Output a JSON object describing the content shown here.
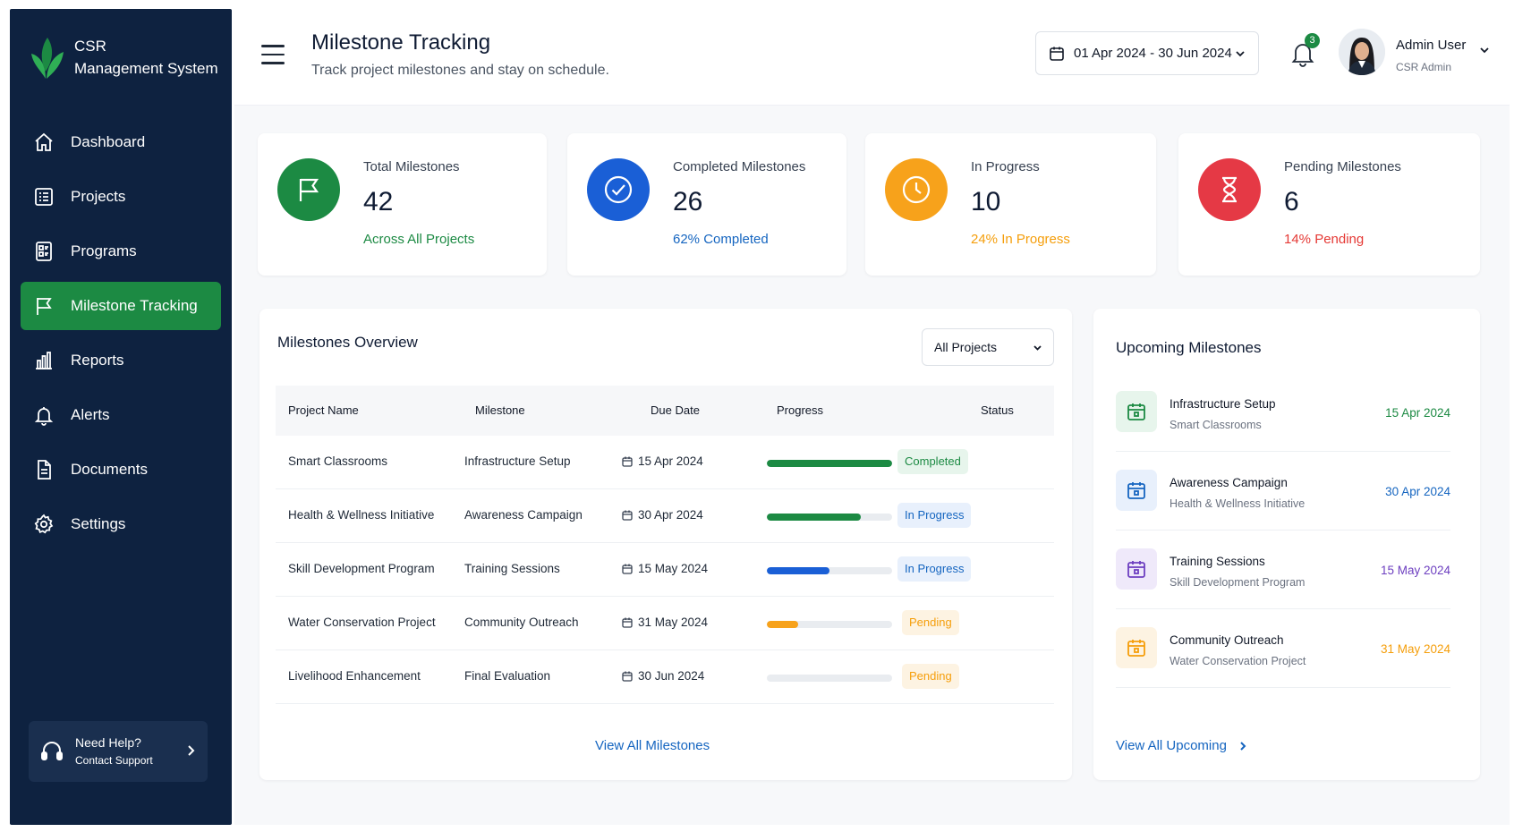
{
  "sidebar": {
    "brand_line1": "CSR",
    "brand_line2": "Management System",
    "items": [
      {
        "label": "Dashboard",
        "icon": "home-icon"
      },
      {
        "label": "Projects",
        "icon": "projects-icon"
      },
      {
        "label": "Programs",
        "icon": "programs-icon"
      },
      {
        "label": "Milestone Tracking",
        "icon": "flag-icon"
      },
      {
        "label": "Reports",
        "icon": "bar-chart-icon"
      },
      {
        "label": "Alerts",
        "icon": "bell-icon"
      },
      {
        "label": "Documents",
        "icon": "document-icon"
      },
      {
        "label": "Settings",
        "icon": "gear-icon"
      }
    ],
    "active_item": "Milestone Tracking",
    "help": {
      "title": "Need Help?",
      "subtitle": "Contact Support"
    }
  },
  "header": {
    "title": "Milestone Tracking",
    "subtitle": "Track project milestones and stay on schedule.",
    "date_range": "01 Apr 2024 - 30 Jun 2024",
    "notification_count": "3",
    "user_name": "Admin User",
    "user_role": "CSR Admin"
  },
  "stats": [
    {
      "label": "Total Milestones",
      "value": "42",
      "sub": "Across All Projects",
      "color": "#1c8a43"
    },
    {
      "label": "Completed Milestones",
      "value": "26",
      "sub": "62% Completed",
      "color": "#1565c0"
    },
    {
      "label": "In Progress",
      "value": "10",
      "sub": "24% In Progress",
      "color": "#f59e0b"
    },
    {
      "label": "Pending Milestones",
      "value": "6",
      "sub": "14% Pending",
      "color": "#e53935"
    }
  ],
  "overview": {
    "title": "Milestones Overview",
    "filter": "All Projects",
    "columns": [
      "Project Name",
      "Milestone",
      "Due Date",
      "Progress",
      "Status"
    ],
    "rows": [
      {
        "project": "Smart Classrooms",
        "milestone": "Infrastructure Setup",
        "due": "15 Apr 2024",
        "progress": 100,
        "progress_label": "100%",
        "status": "Completed"
      },
      {
        "project": "Health & Wellness Initiative",
        "milestone": "Awareness Campaign",
        "due": "30 Apr 2024",
        "progress": 75,
        "progress_label": "75%",
        "status": "In Progress"
      },
      {
        "project": "Skill Development Program",
        "milestone": "Training Sessions",
        "due": "15 May 2024",
        "progress": 50,
        "progress_label": "50%",
        "status": "In Progress"
      },
      {
        "project": "Water Conservation Project",
        "milestone": "Community Outreach",
        "due": "31 May 2024",
        "progress": 25,
        "progress_label": "25%",
        "status": "Pending"
      },
      {
        "project": "Livelihood Enhancement",
        "milestone": "Final Evaluation",
        "due": "30 Jun 2024",
        "progress": 0,
        "progress_label": "0%",
        "status": "Pending"
      }
    ],
    "view_all": "View All Milestones"
  },
  "upcoming": {
    "title": "Upcoming Milestones",
    "items": [
      {
        "title": "Infrastructure Setup",
        "project": "Smart Classrooms",
        "date": "15 Apr 2024",
        "color": "#1c8a43"
      },
      {
        "title": "Awareness Campaign",
        "project": "Health & Wellness Initiative",
        "date": "30 Apr 2024",
        "color": "#1565c0"
      },
      {
        "title": "Training Sessions",
        "project": "Skill Development Program",
        "date": "15 May 2024",
        "color": "#6d3fc0"
      },
      {
        "title": "Community Outreach",
        "project": "Water Conservation Project",
        "date": "31 May 2024",
        "color": "#f59e0b"
      }
    ],
    "view_all": "View All Upcoming"
  },
  "colors": {
    "sidebar_bg": "#0e2240",
    "accent_green": "#1c8a43",
    "blue": "#1565c0",
    "orange": "#f59e0b",
    "red": "#e53935",
    "purple": "#6d3fc0"
  }
}
